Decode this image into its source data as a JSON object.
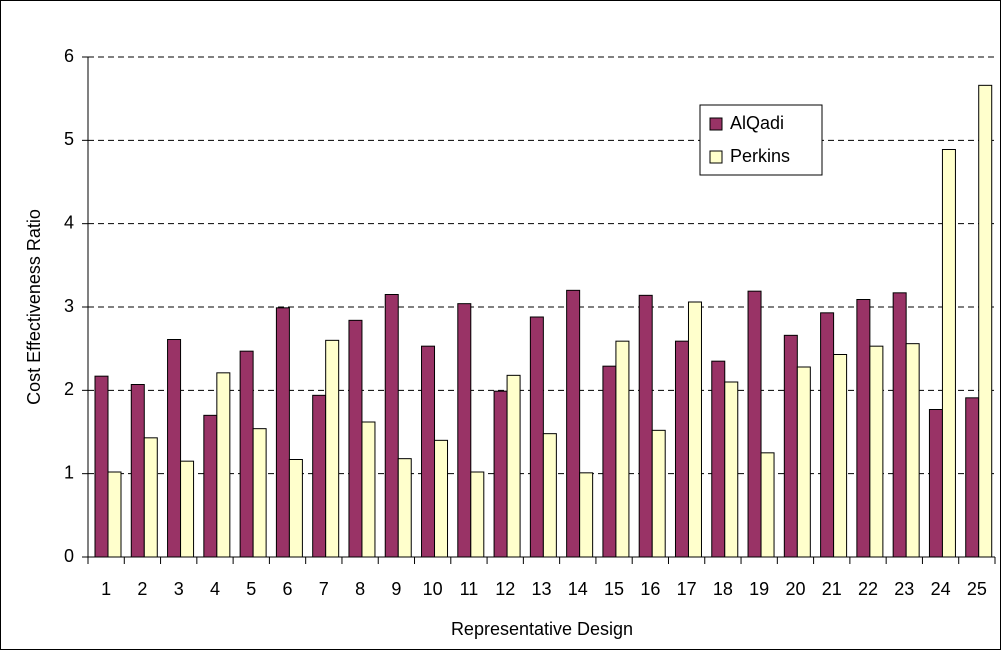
{
  "chart_data": {
    "type": "bar",
    "x_label": "Representative Design",
    "y_label": "Cost Effectiveness Ratio",
    "categories": [
      "1",
      "2",
      "3",
      "4",
      "5",
      "6",
      "7",
      "8",
      "9",
      "10",
      "11",
      "12",
      "13",
      "14",
      "15",
      "16",
      "17",
      "18",
      "19",
      "20",
      "21",
      "22",
      "23",
      "24",
      "25"
    ],
    "series": [
      {
        "name": "AlQadi",
        "color": "#993366",
        "values": [
          2.17,
          2.07,
          2.61,
          1.7,
          2.47,
          2.99,
          1.94,
          2.84,
          3.15,
          2.53,
          3.04,
          1.99,
          2.88,
          3.2,
          2.29,
          3.14,
          2.59,
          2.35,
          3.19,
          2.66,
          2.93,
          3.09,
          3.17,
          1.77,
          1.91
        ]
      },
      {
        "name": "Perkins",
        "color": "#ffffcc",
        "values": [
          1.02,
          1.43,
          1.15,
          2.21,
          1.54,
          1.17,
          2.6,
          1.62,
          1.18,
          1.4,
          1.02,
          2.18,
          1.48,
          1.01,
          2.59,
          1.52,
          3.06,
          2.1,
          1.25,
          2.28,
          2.43,
          2.53,
          2.56,
          4.89,
          5.66
        ]
      }
    ],
    "ylim": [
      0,
      6
    ],
    "yticks": [
      0,
      1,
      2,
      3,
      4,
      5,
      6
    ],
    "grid": true
  }
}
